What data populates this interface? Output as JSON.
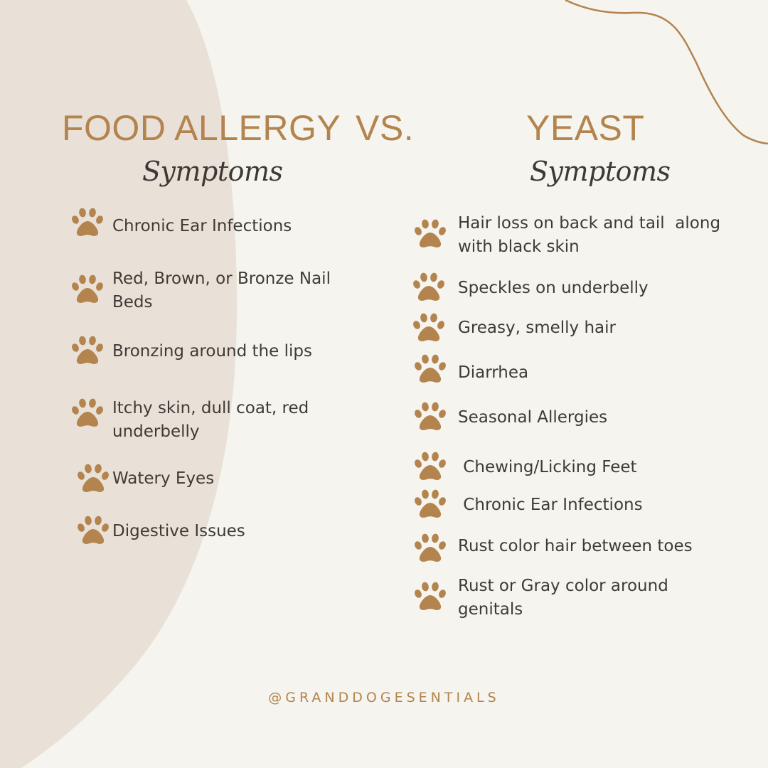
{
  "colors": {
    "background": "#f5f4ee",
    "blob": "#e9e1d8",
    "accent": "#b3844e",
    "text": "#3f3a36"
  },
  "icon": "paw-icon",
  "left": {
    "title": "FOOD ALLERGY",
    "subtitle": "Symptoms",
    "items": [
      {
        "lines": [
          "Chronic Ear Infections"
        ]
      },
      {
        "lines": [
          "Red, Brown, or Bronze Nail",
          "Beds"
        ]
      },
      {
        "lines": [
          "Bronzing around the lips"
        ]
      },
      {
        "lines": [
          "Itchy skin, dull coat, red",
          "underbelly"
        ]
      },
      {
        "lines": [
          "Watery Eyes"
        ]
      },
      {
        "lines": [
          "Digestive Issues"
        ]
      }
    ]
  },
  "vs": "VS.",
  "right": {
    "title": "YEAST",
    "subtitle": "Symptoms",
    "items": [
      {
        "lines": [
          "Hair loss on back and tail  along",
          "with black skin"
        ]
      },
      {
        "lines": [
          "Speckles on underbelly"
        ]
      },
      {
        "lines": [
          "Greasy, smelly hair"
        ]
      },
      {
        "lines": [
          "Diarrhea"
        ]
      },
      {
        "lines": [
          "Seasonal Allergies"
        ]
      },
      {
        "lines": [
          " Chewing/Licking Feet"
        ]
      },
      {
        "lines": [
          " Chronic Ear Infections"
        ]
      },
      {
        "lines": [
          "Rust color hair between toes"
        ]
      },
      {
        "lines": [
          "Rust or Gray color around",
          "genitals"
        ]
      }
    ]
  },
  "footer": "@GRANDDOGESENTIALS"
}
